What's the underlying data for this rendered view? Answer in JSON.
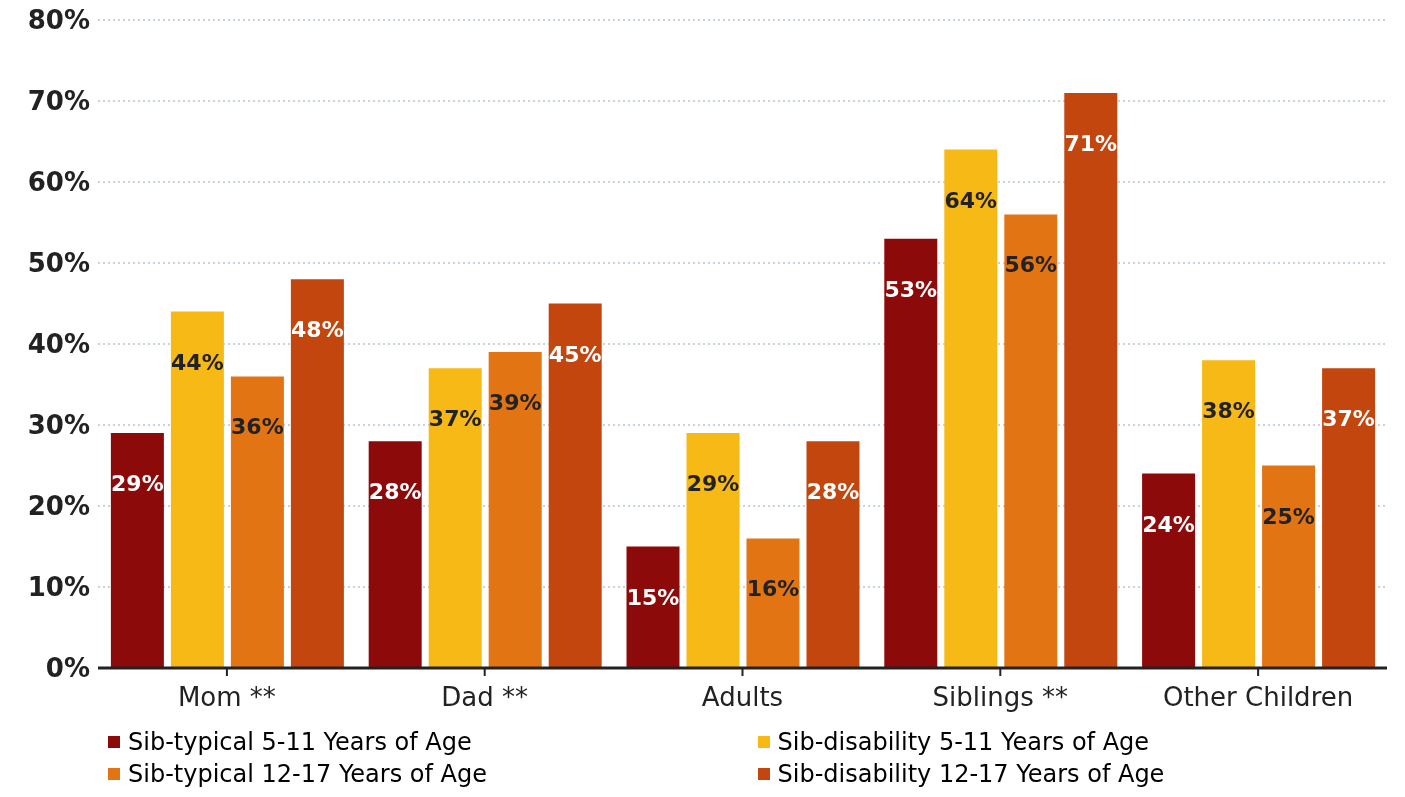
{
  "chart_data": {
    "type": "bar",
    "categories": [
      "Mom **",
      "Dad **",
      "Adults",
      "Siblings **",
      "Other Children"
    ],
    "series": [
      {
        "name": "Sib-typical 5-11 Years of Age",
        "color": "#8c0a0a",
        "values": [
          29,
          28,
          15,
          53,
          24
        ],
        "value_labels": [
          "29%",
          "28%",
          "15%",
          "53%",
          "24%"
        ]
      },
      {
        "name": "Sib-disability 5-11 Years of Age",
        "color": "#f7b916",
        "values": [
          44,
          37,
          29,
          64,
          38
        ],
        "value_labels": [
          "44%",
          "37%",
          "29%",
          "64%",
          "38%"
        ]
      },
      {
        "name": "Sib-typical 12-17 Years of Age",
        "color": "#e27414",
        "values": [
          36,
          39,
          16,
          56,
          25
        ],
        "value_labels": [
          "36%",
          "39%",
          "16%",
          "56%",
          "25%"
        ]
      },
      {
        "name": "Sib-disability 12-17 Years of Age",
        "color": "#c2460e",
        "values": [
          48,
          45,
          28,
          71,
          37
        ],
        "value_labels": [
          "48%",
          "45%",
          "28%",
          "71%",
          "37%"
        ]
      }
    ],
    "ylim": [
      0,
      80
    ],
    "yticks": [
      {
        "value": 0,
        "label": "0%"
      },
      {
        "value": 10,
        "label": "10%"
      },
      {
        "value": 20,
        "label": "20%"
      },
      {
        "value": 30,
        "label": "30%"
      },
      {
        "value": 40,
        "label": "40%"
      },
      {
        "value": 50,
        "label": "50%"
      },
      {
        "value": 60,
        "label": "60%"
      },
      {
        "value": 70,
        "label": "70%"
      },
      {
        "value": 80,
        "label": "80%"
      }
    ],
    "grid": "y",
    "legend": "bottom"
  }
}
